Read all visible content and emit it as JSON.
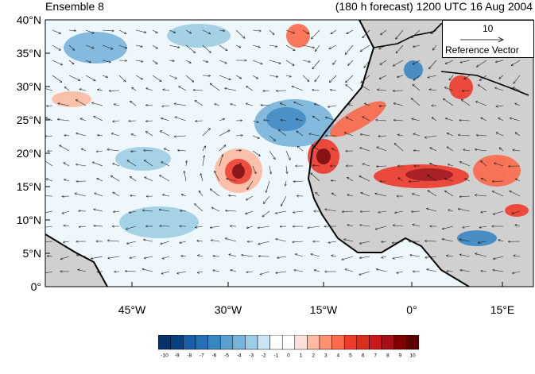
{
  "header": {
    "left_title": "Ensemble 8",
    "right_title": "(180 h forecast) 1200 UTC 16 Aug 2004"
  },
  "map": {
    "lat_labels": [
      "40°N",
      "35°N",
      "30°N",
      "25°N",
      "20°N",
      "15°N",
      "10°N",
      "5°N",
      "0°"
    ],
    "lon_labels": [
      "45°W",
      "30°W",
      "15°W",
      "0°",
      "15°E"
    ],
    "land_color": "#d0d0d0",
    "coast_color": "#000000"
  },
  "reference_vector": {
    "value": "10",
    "label": "Reference Vector"
  },
  "colorbar": {
    "labels": [
      "-10",
      "-9",
      "-8",
      "-7",
      "-6",
      "-5",
      "-4",
      "-3",
      "-2",
      "-1",
      "0",
      "1",
      "2",
      "3",
      "4",
      "5",
      "6",
      "7",
      "8",
      "9",
      "10"
    ],
    "colors": [
      "#08306b",
      "#08407f",
      "#1a5ea6",
      "#2870b4",
      "#3a86c2",
      "#5aa0cf",
      "#78b4da",
      "#9dcde4",
      "#c8e6f4",
      "#ffffff",
      "#ffffff",
      "#fde0dd",
      "#fcbba1",
      "#fc9272",
      "#fb6a4a",
      "#ef3b2c",
      "#d7301f",
      "#cb181d",
      "#a50f15",
      "#800000",
      "#5c0000"
    ]
  }
}
